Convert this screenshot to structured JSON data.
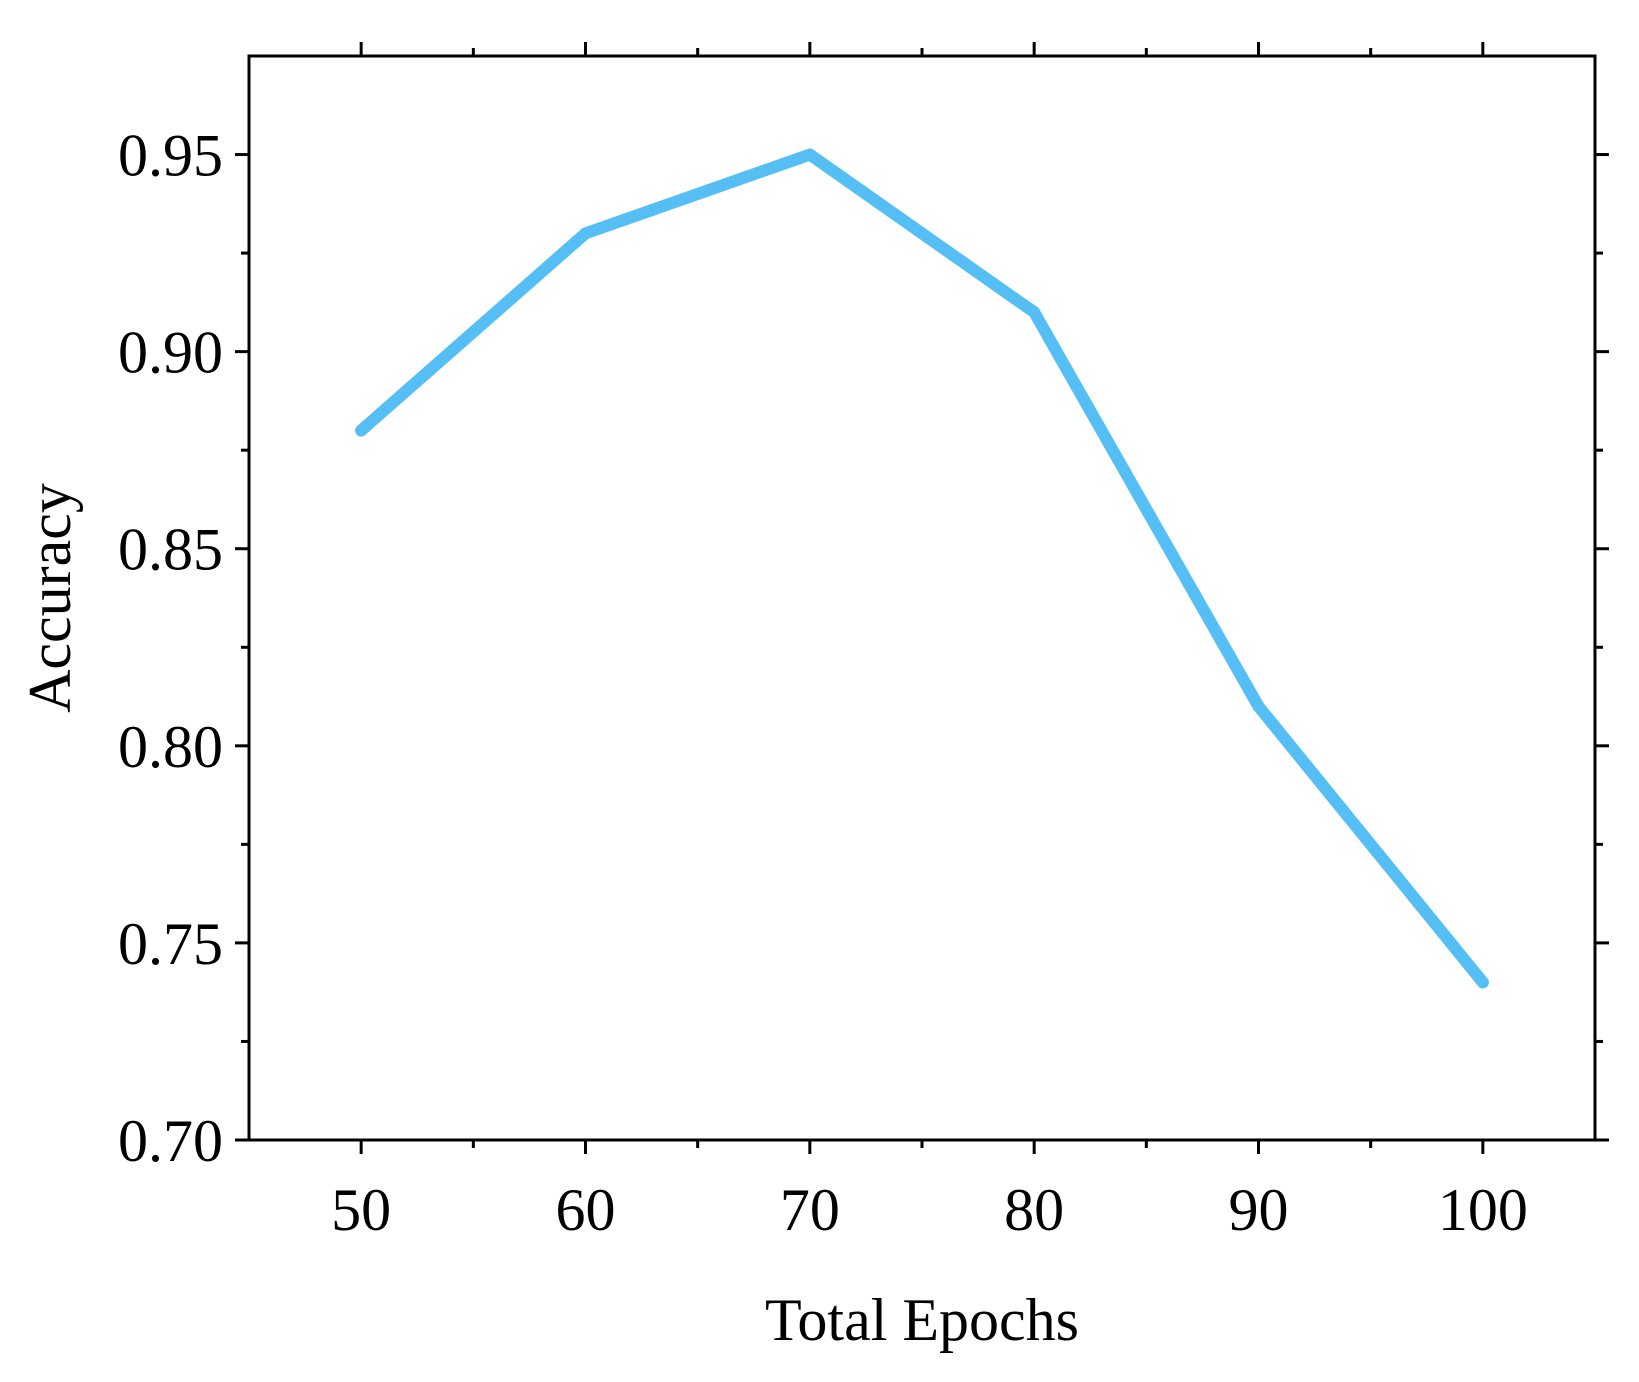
{
  "chart_data": {
    "type": "line",
    "title": "",
    "xlabel": "Total Epochs",
    "ylabel": "Accuracy",
    "x": [
      50,
      60,
      70,
      80,
      90,
      100
    ],
    "series": [
      {
        "values": [
          0.88,
          0.93,
          0.95,
          0.91,
          0.81,
          0.74
        ]
      }
    ],
    "xlim": [
      45,
      105
    ],
    "ylim": [
      0.7,
      0.975
    ],
    "x_ticks": [
      50,
      60,
      70,
      80,
      90,
      100
    ],
    "x_tick_labels": [
      "50",
      "60",
      "70",
      "80",
      "90",
      "100"
    ],
    "x_minor_ticks": [
      55,
      65,
      75,
      85,
      95
    ],
    "y_ticks": [
      0.7,
      0.75,
      0.8,
      0.85,
      0.9,
      0.95
    ],
    "y_tick_labels": [
      "0.70",
      "0.75",
      "0.80",
      "0.85",
      "0.90",
      "0.95"
    ],
    "y_minor_ticks": [
      0.725,
      0.775,
      0.825,
      0.875,
      0.925
    ],
    "grid": false,
    "legend": "none",
    "colors": {
      "line": "#55bff5",
      "axis": "#000000"
    }
  }
}
